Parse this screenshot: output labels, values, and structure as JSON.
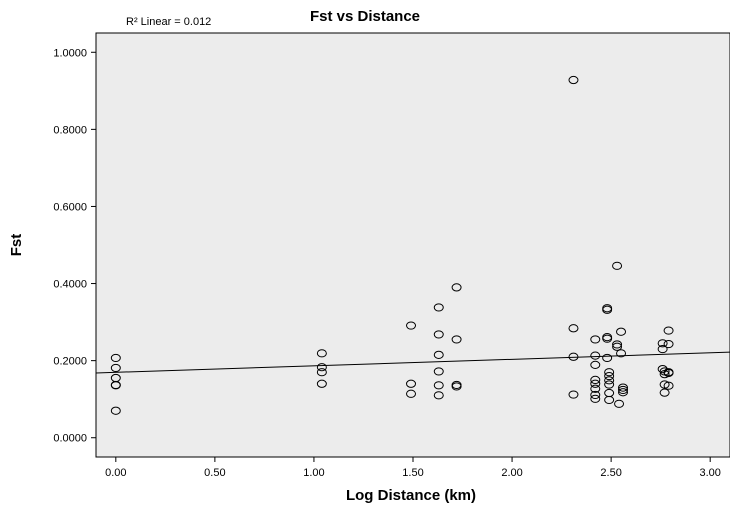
{
  "chart_data": {
    "type": "scatter",
    "title": "Fst vs Distance",
    "xlabel": "Log Distance (km)",
    "ylabel": "Fst",
    "xlim": [
      -0.1,
      3.1
    ],
    "ylim": [
      -0.05,
      1.05
    ],
    "xticks": [
      "0.00",
      "0.50",
      "1.00",
      "1.50",
      "2.00",
      "2.50",
      "3.00"
    ],
    "xtick_values": [
      0,
      0.5,
      1,
      1.5,
      2,
      2.5,
      3
    ],
    "yticks": [
      "0.0000",
      "0.2000",
      "0.4000",
      "0.6000",
      "0.8000",
      "1.0000"
    ],
    "ytick_values": [
      0,
      0.2,
      0.4,
      0.6,
      0.8,
      1.0
    ],
    "annotation": "R² Linear = 0.012",
    "fit_line": {
      "x": [
        -0.1,
        3.1
      ],
      "y": [
        0.168,
        0.222
      ]
    },
    "background_color": "#ececec",
    "x": [
      0.0,
      0.0,
      0.0,
      0.0,
      0.0,
      0.0,
      1.04,
      1.04,
      1.04,
      1.04,
      1.49,
      1.49,
      1.49,
      1.63,
      1.63,
      1.63,
      1.63,
      1.63,
      1.63,
      1.72,
      1.72,
      1.72,
      1.72,
      2.31,
      2.31,
      2.31,
      2.31,
      2.42,
      2.42,
      2.42,
      2.42,
      2.42,
      2.42,
      2.42,
      2.42,
      2.48,
      2.48,
      2.48,
      2.48,
      2.48,
      2.49,
      2.49,
      2.49,
      2.49,
      2.49,
      2.49,
      2.53,
      2.53,
      2.53,
      2.54,
      2.55,
      2.55,
      2.56,
      2.56,
      2.56,
      2.76,
      2.76,
      2.76,
      2.77,
      2.77,
      2.77,
      2.77,
      2.79,
      2.79,
      2.79,
      2.79,
      2.79
    ],
    "y": [
      0.207,
      0.181,
      0.155,
      0.137,
      0.136,
      0.07,
      0.219,
      0.183,
      0.17,
      0.14,
      0.291,
      0.14,
      0.114,
      0.338,
      0.268,
      0.215,
      0.172,
      0.11,
      0.136,
      0.39,
      0.255,
      0.137,
      0.133,
      0.928,
      0.284,
      0.21,
      0.112,
      0.255,
      0.213,
      0.189,
      0.15,
      0.14,
      0.127,
      0.111,
      0.101,
      0.336,
      0.332,
      0.261,
      0.257,
      0.207,
      0.17,
      0.16,
      0.149,
      0.138,
      0.116,
      0.098,
      0.446,
      0.242,
      0.236,
      0.088,
      0.275,
      0.219,
      0.13,
      0.124,
      0.118,
      0.245,
      0.23,
      0.178,
      0.172,
      0.165,
      0.138,
      0.117,
      0.278,
      0.243,
      0.17,
      0.168,
      0.135
    ]
  }
}
